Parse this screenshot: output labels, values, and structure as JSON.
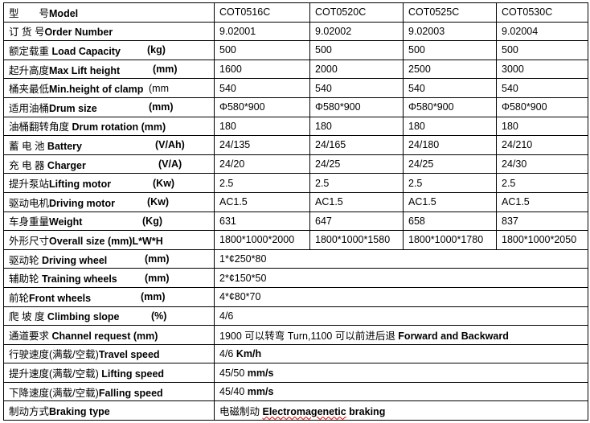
{
  "columns": [
    "COT0516C",
    "COT0520C",
    "COT0525C",
    "COT0530C"
  ],
  "rows": [
    {
      "cn": "型　　号",
      "en": "Model",
      "unit": "",
      "values": [
        "COT0516C",
        "COT0520C",
        "COT0525C",
        "COT0530C"
      ]
    },
    {
      "cn": "订 货 号",
      "en": "Order Number",
      "unit": "",
      "values": [
        "9.02001",
        "9.02002",
        "9.02003",
        "9.02004"
      ]
    },
    {
      "cn": "额定载重",
      "en": " Load Capacity",
      "unit": "(kg)",
      "values": [
        "500",
        "500",
        "500",
        "500"
      ]
    },
    {
      "cn": "起升高度",
      "en": "Max Lift height",
      "unit": "(mm)",
      "values": [
        "1600",
        "2000",
        "2500",
        "3000"
      ]
    },
    {
      "cn": "桶夹最低",
      "en": "Min.height of clamp",
      "unit": "(mm",
      "values": [
        "540",
        "540",
        "540",
        "540"
      ]
    },
    {
      "cn": "适用油桶",
      "en": "Drum size",
      "unit": "(mm)",
      "values": [
        "Φ580*900",
        "Φ580*900",
        "Φ580*900",
        "Φ580*900"
      ]
    },
    {
      "cn": "油桶翻转角度",
      "en": " Drum rotation (mm)",
      "unit": "",
      "values": [
        "180",
        "180",
        "180",
        "180"
      ]
    },
    {
      "cn": "蓄 电 池",
      "en": " Battery",
      "unit": "(V/Ah)",
      "values": [
        "24/135",
        "24/165",
        "24/180",
        "24/210"
      ]
    },
    {
      "cn": "充 电 器",
      "en": " Charger",
      "unit": "(V/A)",
      "values": [
        "24/20",
        "24/25",
        "24/25",
        "24/30"
      ]
    },
    {
      "cn": "提升泵站",
      "en": "Lifting motor",
      "unit": "(Kw)",
      "values": [
        "2.5",
        "2.5",
        "2.5",
        "2.5"
      ]
    },
    {
      "cn": "驱动电机",
      "en": "Driving motor",
      "unit": "(Kw)",
      "values": [
        "AC1.5",
        "AC1.5",
        "AC1.5",
        "AC1.5"
      ]
    },
    {
      "cn": "车身重量",
      "en": "Weight",
      "unit": "(Kg)",
      "values": [
        "631",
        "647",
        "658",
        "837"
      ]
    },
    {
      "cn": "外形尺寸",
      "en": "Overall size (mm)L*W*H",
      "unit": "",
      "values": [
        "1800*1000*2000",
        "1800*1000*1580",
        "1800*1000*1780",
        "1800*1000*2050"
      ]
    }
  ],
  "merged_rows": [
    {
      "cn": "驱动轮 ",
      "en": " Driving wheel",
      "unit": "(mm)",
      "value": "1*¢250*80",
      "value_bold": ""
    },
    {
      "cn": "辅助轮 ",
      "en": " Training wheels",
      "unit": "(mm)",
      "value": "2*¢150*50",
      "value_bold": ""
    },
    {
      "cn": "前轮",
      "en": "Front wheels",
      "unit": "(mm)",
      "value": "4*¢80*70",
      "value_bold": ""
    },
    {
      "cn": "爬 坡 度",
      "en": " Climbing slope",
      "unit": "(%)",
      "value": "4/6",
      "value_bold": ""
    },
    {
      "cn": "通道要求",
      "en": " Channel request (mm)",
      "unit": "",
      "value": "1900 可以转弯 Turn,1100 可以前进后退 ",
      "value_bold": " Forward and Backward"
    },
    {
      "cn": "行驶速度(满载/空载)",
      "en": "Travel speed",
      "unit": "",
      "value": "4/6 ",
      "value_bold": "Km/h"
    },
    {
      "cn": "提升速度(满载/空载)",
      "en": " Lifting speed",
      "unit": "",
      "value": "45/50 ",
      "value_bold": "mm/s"
    },
    {
      "cn": "下降速度(满载/空载)",
      "en": "Falling speed",
      "unit": "",
      "value": "45/40 ",
      "value_bold": "mm/s"
    },
    {
      "cn": "制动方式",
      "en": "Braking type",
      "unit": "",
      "value": "电磁制动 ",
      "value_bold": "Electromagenetic",
      "value_bold2": " braking"
    }
  ]
}
